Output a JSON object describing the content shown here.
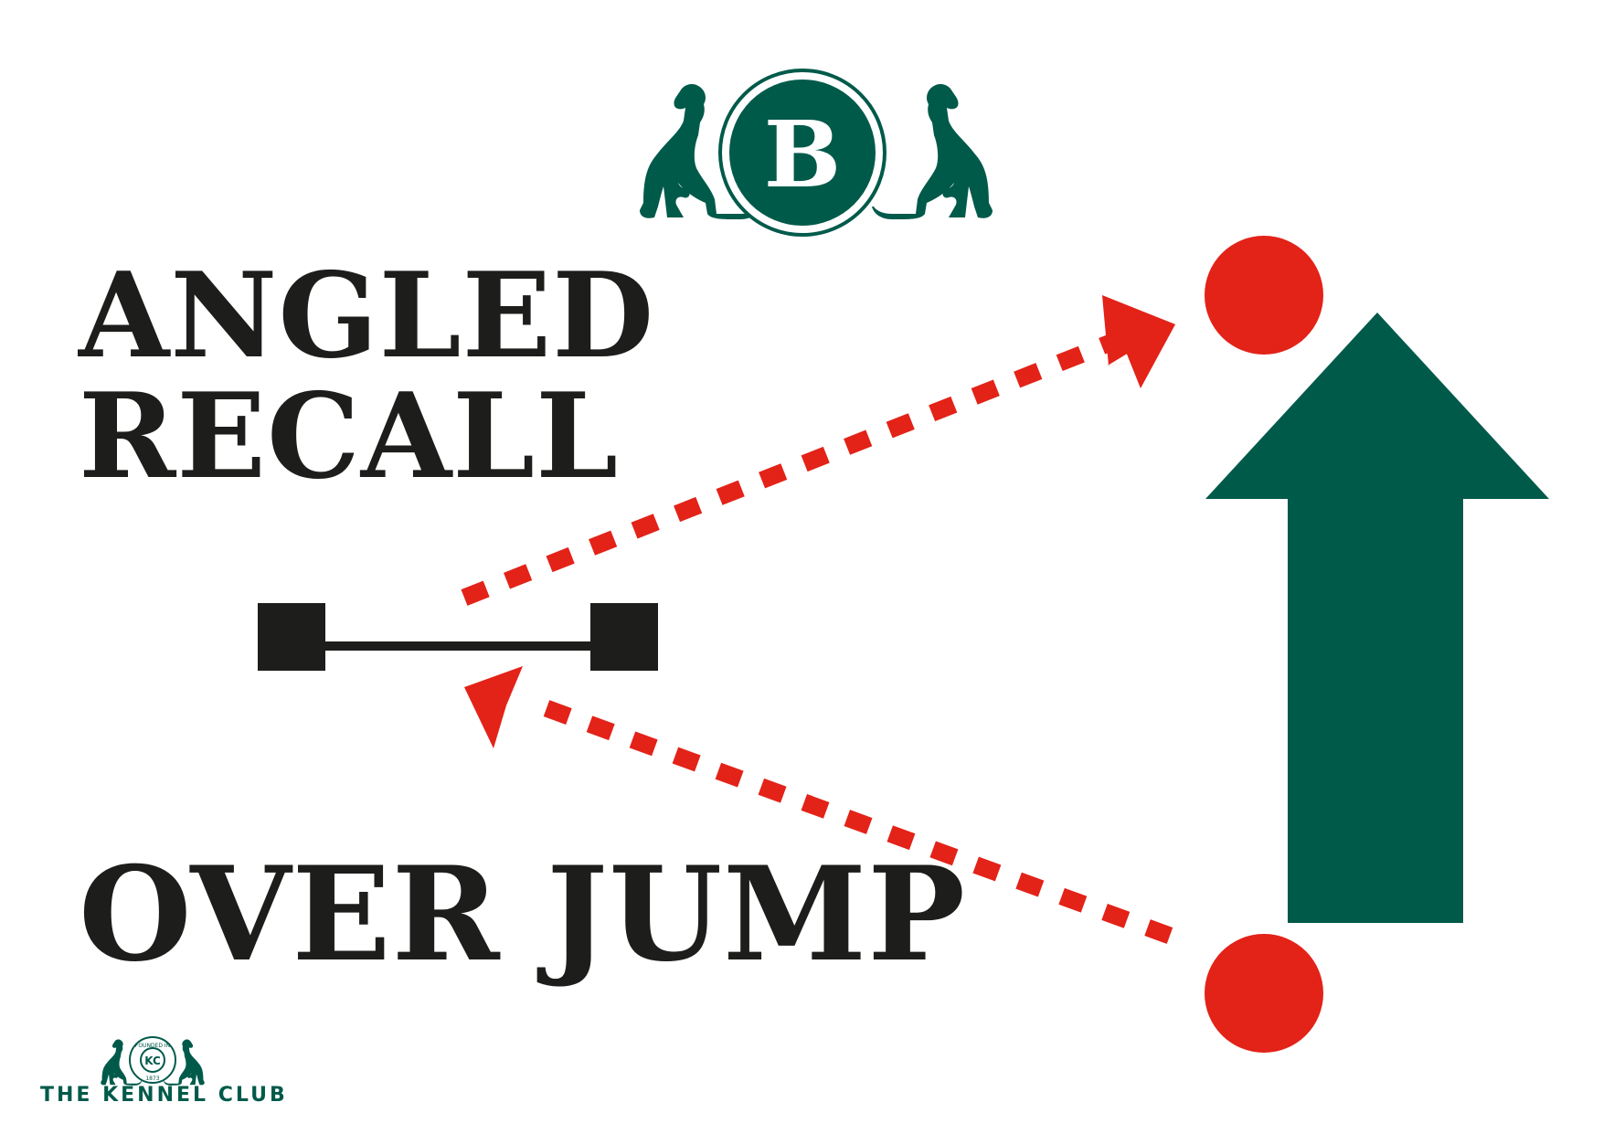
{
  "colors": {
    "brand_green": "#005a4a",
    "red": "#e32218",
    "text": "#1d1d1b",
    "background": "#ffffff"
  },
  "badge": {
    "letter": "B",
    "icon": "dog-icon"
  },
  "title": {
    "line1": "ANGLED",
    "line2": "RECALL",
    "line3": "OVER JUMP"
  },
  "kennel_club": {
    "name": "THE KENNEL CLUB",
    "emblem_letters": "KC",
    "emblem_ring": "FOUNDED IN",
    "emblem_year": "1873"
  },
  "icons": [
    "dog-icon",
    "jump-bar-icon",
    "dashed-arrow-icon",
    "marker-dot-icon",
    "direction-arrow-icon"
  ]
}
